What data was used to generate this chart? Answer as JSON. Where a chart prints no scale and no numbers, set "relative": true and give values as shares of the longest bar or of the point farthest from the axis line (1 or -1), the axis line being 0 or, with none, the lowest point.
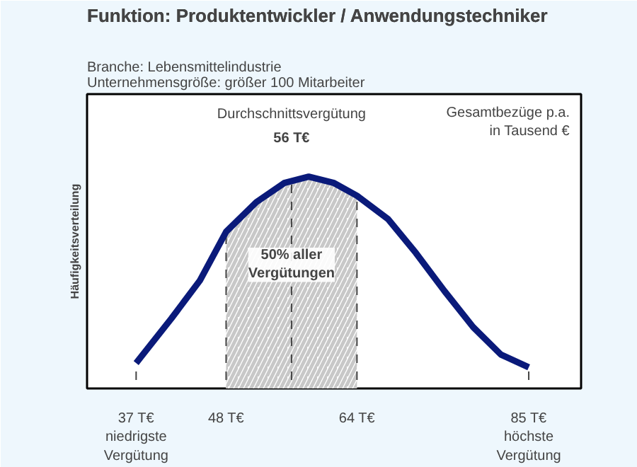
{
  "chart_data": {
    "type": "line",
    "title": "Funktion: Produktentwickler / Anwendungstechniker",
    "subtitle": "Branche: Lebensmittelindustrie\nUnternehmensgröße: größer 100 Mitarbeiter",
    "ylabel": "Häufigkeitsverteilung",
    "relative": true,
    "x": [
      37,
      41.3,
      44.8,
      48,
      51.7,
      55.1,
      58.1,
      61.2,
      64,
      67.8,
      71.2,
      74.7,
      78.2,
      81.6,
      85
    ],
    "series": [
      {
        "color": "#0a1a7a",
        "values": [
          0.12,
          0.33,
          0.51,
          0.74,
          0.88,
          0.97,
          1.0,
          0.97,
          0.91,
          0.8,
          0.64,
          0.46,
          0.29,
          0.16,
          0.1
        ]
      }
    ],
    "xlim": [
      31,
      91.4
    ],
    "xticks": [
      {
        "value": 37,
        "label": "37 T€\nniedrigste\nVergütung"
      },
      {
        "value": 48,
        "label": "48 T€"
      },
      {
        "value": 64,
        "label": "64 T€"
      },
      {
        "value": 85,
        "label": "85 T€\nhöchste\nVergütung"
      }
    ],
    "ref_lines": [
      {
        "axis": "x",
        "value": 37,
        "line_style": "dashed"
      },
      {
        "axis": "x",
        "value": 48,
        "line_style": "dashed"
      },
      {
        "axis": "x",
        "value": 56,
        "label": "Durchschnittsvergütung\n56 T€",
        "line_style": "dashed"
      },
      {
        "axis": "x",
        "value": 64,
        "line_style": "dashed"
      },
      {
        "axis": "x",
        "value": 85,
        "line_style": "dashed"
      }
    ],
    "bands": [
      {
        "axis": "x",
        "from": 48,
        "to": 64,
        "label": "50% aller\nVergütungen",
        "color": "#c8c8c8"
      }
    ],
    "annotations": [
      "Gesamtbezüge p.a.\nin Tausend €"
    ],
    "line_style": "solid",
    "marker": "none"
  }
}
